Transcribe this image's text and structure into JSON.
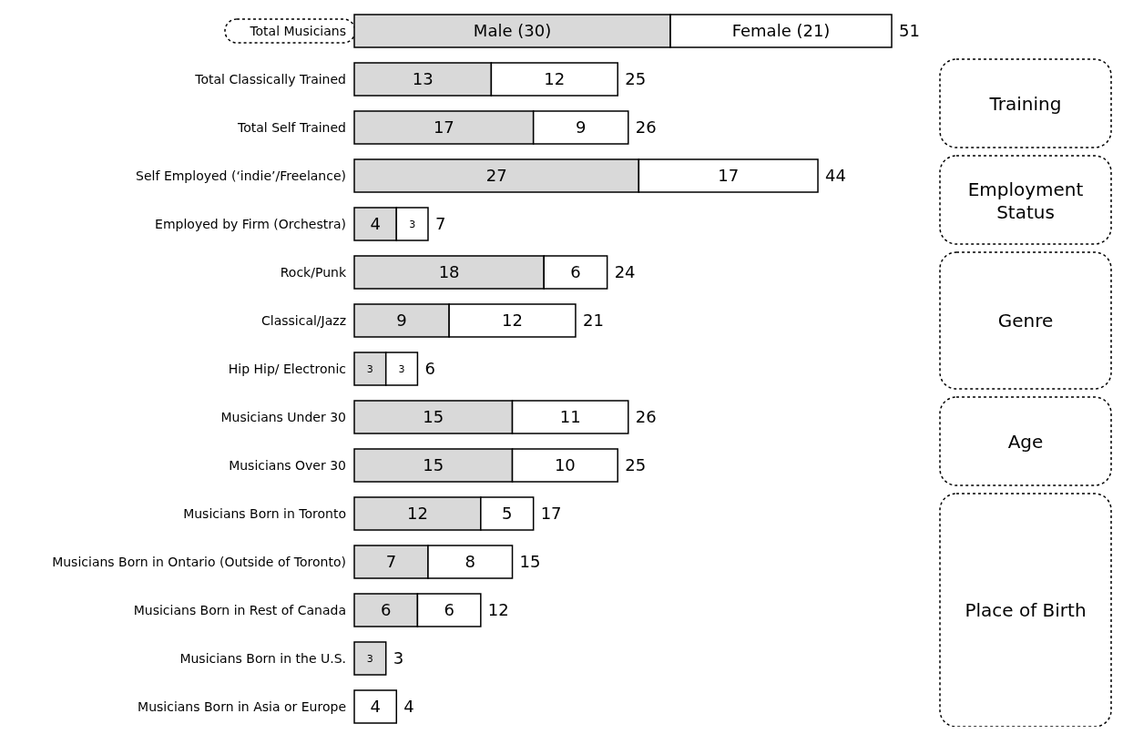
{
  "chart_data": {
    "type": "bar",
    "orientation": "horizontal",
    "stacked": true,
    "categories": [
      "Total Musicians",
      "Total Classically Trained",
      "Total Self Trained",
      "Self Employed (‘indie’/Freelance)",
      "Employed by Firm (Orchestra)",
      "Rock/Punk",
      "Classical/Jazz",
      "Hip Hip/ Electronic",
      "Musicians Under 30",
      "Musicians Over 30",
      "Musicians Born in Toronto",
      "Musicians Born in Ontario (Outside of Toronto)",
      "Musicians Born in Rest of Canada",
      "Musicians Born in the U.S.",
      "Musicians Born in Asia or Europe"
    ],
    "series": [
      {
        "color": "#d9d9d9",
        "values": [
          30,
          13,
          17,
          27,
          4,
          18,
          9,
          3,
          15,
          15,
          12,
          7,
          6,
          3,
          null
        ],
        "value_labels": [
          "Male (30)",
          "13",
          "17",
          "27",
          "4",
          "18",
          "9",
          "3",
          "15",
          "15",
          "12",
          "7",
          "6",
          "3",
          null
        ]
      },
      {
        "color": "#ffffff",
        "values": [
          21,
          12,
          9,
          17,
          3,
          6,
          12,
          3,
          11,
          10,
          5,
          8,
          6,
          null,
          4
        ],
        "value_labels": [
          "Female (21)",
          "12",
          "9",
          "17",
          "3",
          "6",
          "12",
          "3",
          "11",
          "10",
          "5",
          "8",
          "6",
          null,
          "4"
        ]
      }
    ],
    "totals": [
      "51",
      "25",
      "26",
      "44",
      "7",
      "24",
      "21",
      "6",
      "26",
      "25",
      "17",
      "15",
      "12",
      "3",
      "4"
    ],
    "annotations": [
      "Training",
      "Employment Status",
      "Genre",
      "Age",
      "Place of Birth"
    ]
  }
}
